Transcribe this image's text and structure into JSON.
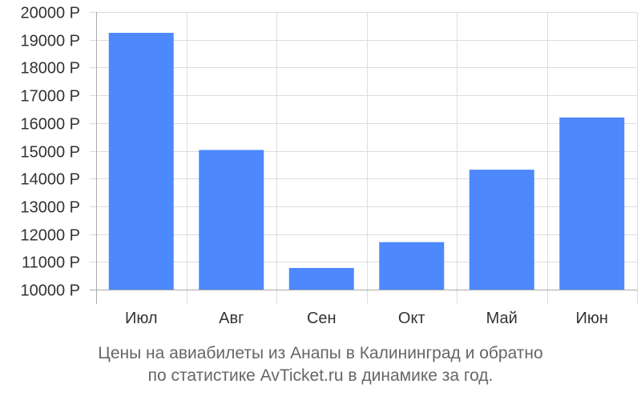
{
  "chart_data": {
    "type": "bar",
    "categories": [
      "Июл",
      "Авг",
      "Сен",
      "Окт",
      "Май",
      "Июн"
    ],
    "values": [
      19250,
      15030,
      10780,
      11710,
      14320,
      16200
    ],
    "ylim": [
      10000,
      20000
    ],
    "yticks": [
      10000,
      11000,
      12000,
      13000,
      14000,
      15000,
      16000,
      17000,
      18000,
      19000,
      20000
    ],
    "ytick_suffix": " Р",
    "grid": true,
    "bar_color": "#4d88fd",
    "grid_color": "#dddddd",
    "axis_color": "#aaaaaa"
  },
  "caption": {
    "line1": "Цены на авиабилеты из Анапы в Калининград и обратно",
    "line2": "по статистике AvTicket.ru в динамике за год."
  }
}
